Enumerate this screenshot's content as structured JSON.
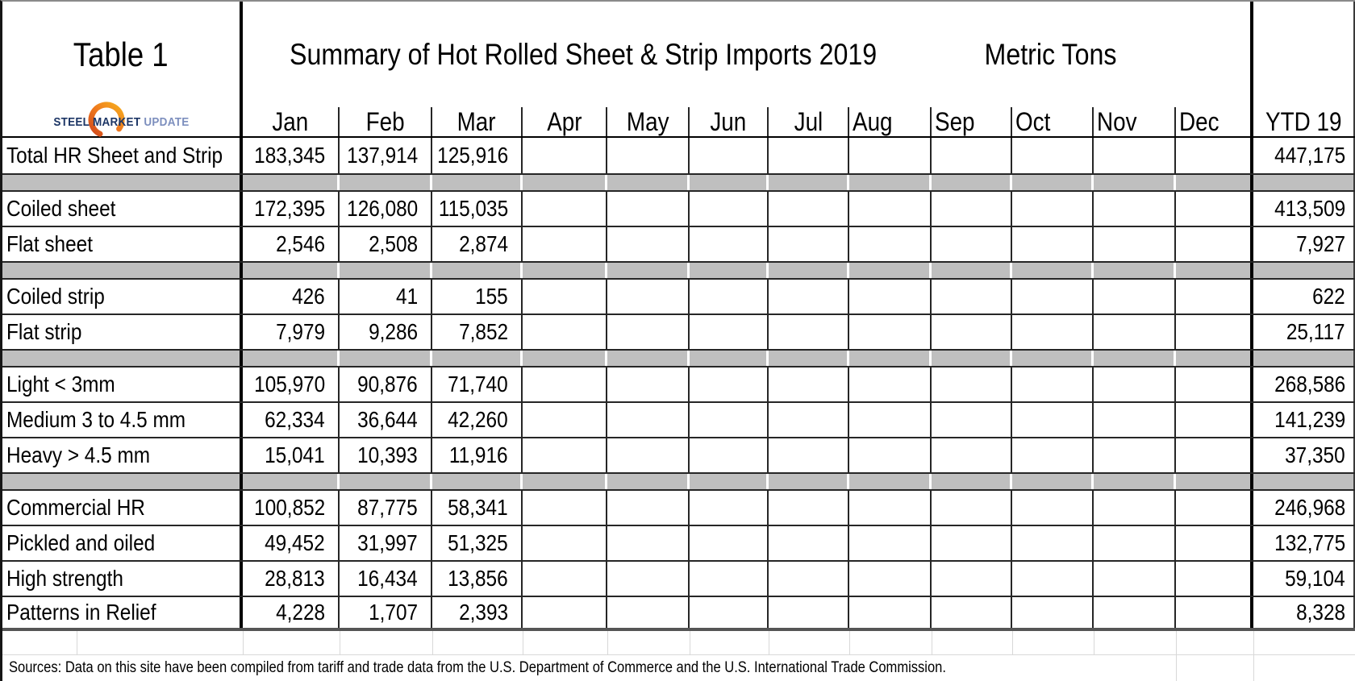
{
  "table": {
    "label": "Table 1",
    "title": "Summary of Hot Rolled Sheet & Strip Imports 2019",
    "units": "Metric Tons",
    "logo": {
      "word1": "STEEL",
      "word2": "MARKET",
      "word3": "UPDATE"
    },
    "columns": [
      "Jan",
      "Feb",
      "Mar",
      "Apr",
      "May",
      "Jun",
      "Jul",
      "Aug",
      "Sep",
      "Oct",
      "Nov",
      "Dec",
      "YTD 19"
    ],
    "rows": [
      {
        "type": "data",
        "label": "Total HR Sheet and Strip",
        "values": [
          "183,345",
          "137,914",
          "125,916",
          "",
          "",
          "",
          "",
          "",
          "",
          "",
          "",
          "",
          "447,175"
        ]
      },
      {
        "type": "separator"
      },
      {
        "type": "data",
        "label": "Coiled sheet",
        "values": [
          "172,395",
          "126,080",
          "115,035",
          "",
          "",
          "",
          "",
          "",
          "",
          "",
          "",
          "",
          "413,509"
        ]
      },
      {
        "type": "data",
        "label": "Flat sheet",
        "values": [
          "2,546",
          "2,508",
          "2,874",
          "",
          "",
          "",
          "",
          "",
          "",
          "",
          "",
          "",
          "7,927"
        ]
      },
      {
        "type": "separator"
      },
      {
        "type": "data",
        "label": "Coiled strip",
        "values": [
          "426",
          "41",
          "155",
          "",
          "",
          "",
          "",
          "",
          "",
          "",
          "",
          "",
          "622"
        ]
      },
      {
        "type": "data",
        "label": "Flat strip",
        "values": [
          "7,979",
          "9,286",
          "7,852",
          "",
          "",
          "",
          "",
          "",
          "",
          "",
          "",
          "",
          "25,117"
        ]
      },
      {
        "type": "separator"
      },
      {
        "type": "data",
        "label": "Light < 3mm",
        "values": [
          "105,970",
          "90,876",
          "71,740",
          "",
          "",
          "",
          "",
          "",
          "",
          "",
          "",
          "",
          "268,586"
        ]
      },
      {
        "type": "data",
        "label": "Medium 3 to 4.5 mm",
        "values": [
          "62,334",
          "36,644",
          "42,260",
          "",
          "",
          "",
          "",
          "",
          "",
          "",
          "",
          "",
          "141,239"
        ]
      },
      {
        "type": "data",
        "label": "Heavy > 4.5 mm",
        "values": [
          "15,041",
          "10,393",
          "11,916",
          "",
          "",
          "",
          "",
          "",
          "",
          "",
          "",
          "",
          "37,350"
        ]
      },
      {
        "type": "separator"
      },
      {
        "type": "data",
        "label": "Commercial HR",
        "values": [
          "100,852",
          "87,775",
          "58,341",
          "",
          "",
          "",
          "",
          "",
          "",
          "",
          "",
          "",
          "246,968"
        ]
      },
      {
        "type": "data",
        "label": "Pickled and oiled",
        "values": [
          "49,452",
          "31,997",
          "51,325",
          "",
          "",
          "",
          "",
          "",
          "",
          "",
          "",
          "",
          "132,775"
        ]
      },
      {
        "type": "data",
        "label": "High strength",
        "values": [
          "28,813",
          "16,434",
          "13,856",
          "",
          "",
          "",
          "",
          "",
          "",
          "",
          "",
          "",
          "59,104"
        ]
      },
      {
        "type": "data",
        "label": "Patterns in Relief",
        "values": [
          "4,228",
          "1,707",
          "2,393",
          "",
          "",
          "",
          "",
          "",
          "",
          "",
          "",
          "",
          "8,328"
        ]
      }
    ]
  },
  "footer": {
    "sources": "Sources: Data on this site have been compiled from tariff and trade data from the U.S. Department of Commerce and the U.S. International Trade Commission."
  },
  "colors": {
    "separator_fill": "#bfbfbf",
    "border_thick": "#000000",
    "border_thin": "#262626",
    "gridline_faint": "#d8d8d8",
    "logo_navy": "#1c3565",
    "logo_light_blue": "#7d8fbe",
    "logo_orange_dark": "#d24a1c",
    "logo_orange_light": "#f5a01e"
  },
  "chart_data": {
    "type": "table",
    "title": "Summary of Hot Rolled Sheet & Strip Imports 2019",
    "table_label": "Table 1",
    "units": "Metric Tons",
    "columns": [
      "Jan",
      "Feb",
      "Mar",
      "Apr",
      "May",
      "Jun",
      "Jul",
      "Aug",
      "Sep",
      "Oct",
      "Nov",
      "Dec",
      "YTD 19"
    ],
    "rows": [
      {
        "label": "Total HR Sheet and Strip",
        "Jan": 183345,
        "Feb": 137914,
        "Mar": 125916,
        "YTD 19": 447175
      },
      {
        "label": "Coiled sheet",
        "Jan": 172395,
        "Feb": 126080,
        "Mar": 115035,
        "YTD 19": 413509
      },
      {
        "label": "Flat sheet",
        "Jan": 2546,
        "Feb": 2508,
        "Mar": 2874,
        "YTD 19": 7927
      },
      {
        "label": "Coiled strip",
        "Jan": 426,
        "Feb": 41,
        "Mar": 155,
        "YTD 19": 622
      },
      {
        "label": "Flat strip",
        "Jan": 7979,
        "Feb": 9286,
        "Mar": 7852,
        "YTD 19": 25117
      },
      {
        "label": "Light < 3mm",
        "Jan": 105970,
        "Feb": 90876,
        "Mar": 71740,
        "YTD 19": 268586
      },
      {
        "label": "Medium 3 to 4.5 mm",
        "Jan": 62334,
        "Feb": 36644,
        "Mar": 42260,
        "YTD 19": 141239
      },
      {
        "label": "Heavy > 4.5 mm",
        "Jan": 15041,
        "Feb": 10393,
        "Mar": 11916,
        "YTD 19": 37350
      },
      {
        "label": "Commercial HR",
        "Jan": 100852,
        "Feb": 87775,
        "Mar": 58341,
        "YTD 19": 246968
      },
      {
        "label": "Pickled and oiled",
        "Jan": 49452,
        "Feb": 31997,
        "Mar": 51325,
        "YTD 19": 132775
      },
      {
        "label": "High strength",
        "Jan": 28813,
        "Feb": 16434,
        "Mar": 13856,
        "YTD 19": 59104
      },
      {
        "label": "Patterns in Relief",
        "Jan": 4228,
        "Feb": 1707,
        "Mar": 2393,
        "YTD 19": 8328
      }
    ]
  }
}
